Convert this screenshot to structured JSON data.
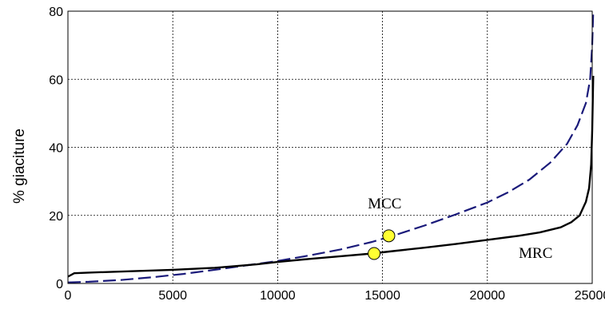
{
  "chart_data": {
    "type": "line",
    "title": "",
    "xlabel": "",
    "ylabel": "% giaciture",
    "xlim": [
      0,
      25000
    ],
    "ylim": [
      0,
      80
    ],
    "xticks": [
      0,
      5000,
      10000,
      15000,
      20000,
      25000
    ],
    "yticks": [
      0,
      20,
      40,
      60,
      80
    ],
    "grid": true,
    "series": [
      {
        "name": "MCC",
        "color": "#1a1a7a",
        "style": "dashed",
        "x": [
          0,
          1000,
          2500,
          4000,
          5500,
          7000,
          8500,
          10000,
          11500,
          13000,
          14500,
          15500,
          17000,
          18500,
          20000,
          21000,
          22000,
          23000,
          23800,
          24300,
          24700,
          24900,
          25000,
          25050
        ],
        "y": [
          0.3,
          0.5,
          1.0,
          1.8,
          2.8,
          4.0,
          5.3,
          6.6,
          8.2,
          10.0,
          12.2,
          14.0,
          17.0,
          20.3,
          23.8,
          26.8,
          30.5,
          35.5,
          41.0,
          46.5,
          53.0,
          60.0,
          70.0,
          80.0
        ]
      },
      {
        "name": "MRC",
        "color": "#000000",
        "style": "solid",
        "x": [
          0,
          300,
          1000,
          3000,
          5000,
          7000,
          9000,
          10000,
          11500,
          13000,
          14500,
          15500,
          17000,
          18500,
          20000,
          21500,
          22500,
          23500,
          24000,
          24400,
          24700,
          24850,
          24950,
          25000,
          25050
        ],
        "y": [
          2.0,
          3.0,
          3.2,
          3.6,
          4.0,
          4.6,
          5.6,
          6.3,
          7.2,
          8.0,
          8.8,
          9.5,
          10.5,
          11.6,
          12.8,
          14.0,
          15.0,
          16.5,
          18.0,
          20.0,
          24.0,
          28.0,
          35.0,
          45.0,
          61.0
        ]
      }
    ],
    "markers": [
      {
        "x": 14600,
        "y": 8.8,
        "color": "#ffff33"
      },
      {
        "x": 15300,
        "y": 14.0,
        "color": "#ffff33"
      }
    ],
    "annotations": [
      {
        "text": "MCC",
        "x": 14300,
        "y": 22.0
      },
      {
        "text": "MRC",
        "x": 21500,
        "y": 7.5
      }
    ]
  }
}
